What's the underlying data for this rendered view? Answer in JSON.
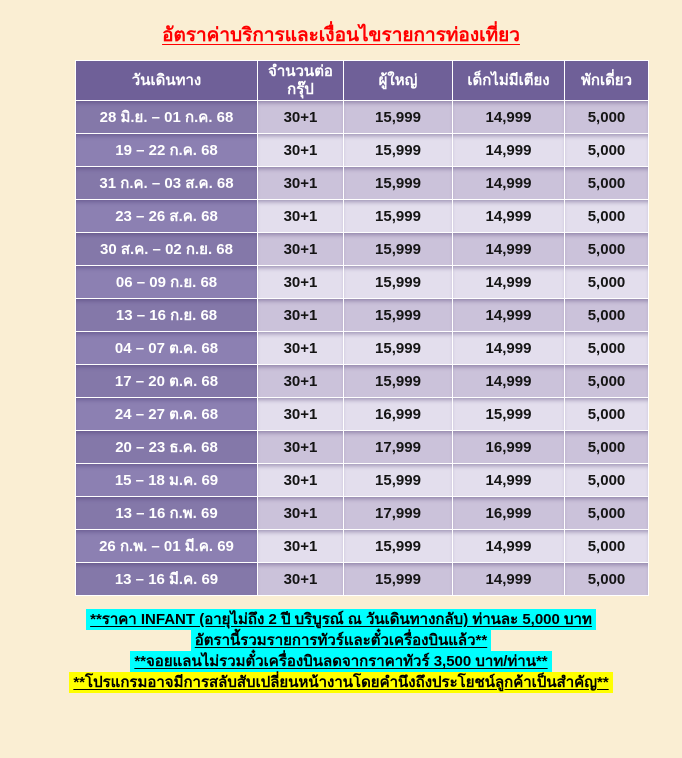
{
  "page": {
    "title": "อัตราค่าบริการและเงื่อนไขรายการท่องเที่ยว"
  },
  "table": {
    "columns": [
      "วันเดินทาง",
      "จำนวนต่อ กรุ๊ป",
      "ผู้ใหญ่",
      "เด็กไม่มีเตียง",
      "พักเดี่ยว"
    ],
    "rows": [
      [
        "28 มิ.ย. – 01 ก.ค. 68",
        "30+1",
        "15,999",
        "14,999",
        "5,000"
      ],
      [
        "19 – 22 ก.ค. 68",
        "30+1",
        "15,999",
        "14,999",
        "5,000"
      ],
      [
        "31 ก.ค. – 03 ส.ค. 68",
        "30+1",
        "15,999",
        "14,999",
        "5,000"
      ],
      [
        "23 – 26 ส.ค. 68",
        "30+1",
        "15,999",
        "14,999",
        "5,000"
      ],
      [
        "30 ส.ค. – 02 ก.ย. 68",
        "30+1",
        "15,999",
        "14,999",
        "5,000"
      ],
      [
        "06 – 09 ก.ย. 68",
        "30+1",
        "15,999",
        "14,999",
        "5,000"
      ],
      [
        "13 – 16 ก.ย. 68",
        "30+1",
        "15,999",
        "14,999",
        "5,000"
      ],
      [
        "04 – 07 ต.ค. 68",
        "30+1",
        "15,999",
        "14,999",
        "5,000"
      ],
      [
        "17 – 20 ต.ค. 68",
        "30+1",
        "15,999",
        "14,999",
        "5,000"
      ],
      [
        "24 – 27 ต.ค. 68",
        "30+1",
        "16,999",
        "15,999",
        "5,000"
      ],
      [
        "20 – 23 ธ.ค. 68",
        "30+1",
        "17,999",
        "16,999",
        "5,000"
      ],
      [
        "15 – 18 ม.ค. 69",
        "30+1",
        "15,999",
        "14,999",
        "5,000"
      ],
      [
        "13 – 16 ก.พ. 69",
        "30+1",
        "17,999",
        "16,999",
        "5,000"
      ],
      [
        "26 ก.พ. – 01 มี.ค. 69",
        "30+1",
        "15,999",
        "14,999",
        "5,000"
      ],
      [
        "13 – 16 มี.ค. 69",
        "30+1",
        "15,999",
        "14,999",
        "5,000"
      ]
    ]
  },
  "notes": [
    {
      "text": "**ราคา INFANT (อายุไม่ถึง 2 ปี บริบูรณ์ ณ วันเดินทางกลับ) ท่านละ 5,000 บาท",
      "highlight": "cyan"
    },
    {
      "text": "อัตรานี้รวมรายการทัวร์และตั๋วเครื่องบินแล้ว**",
      "highlight": "cyan"
    },
    {
      "text": "**จอยแลนไม่รวมตั๋วเครื่องบินลดจากราคาทัวร์ 3,500 บาท/ท่าน**",
      "highlight": "cyan"
    },
    {
      "text": "**โปรแกรมอาจมีการสลับสับเปลี่ยนหน้างานโดยคำนึงถึงประโยชน์ลูกค้าเป็นสำคัญ**",
      "highlight": "yellow"
    }
  ],
  "colors": {
    "background": "#FAEED3",
    "title_red": "#FF0000",
    "header_purple": "#6F6098",
    "date_cell_odd": "#8478A9",
    "date_cell_even": "#8C80B2",
    "data_cell_odd": "#CBC2DA",
    "data_cell_even": "#E3DEED",
    "grid_line": "#FFFFFF",
    "note_highlight_cyan": "#00FFFF",
    "note_highlight_yellow": "#FFFF00"
  }
}
